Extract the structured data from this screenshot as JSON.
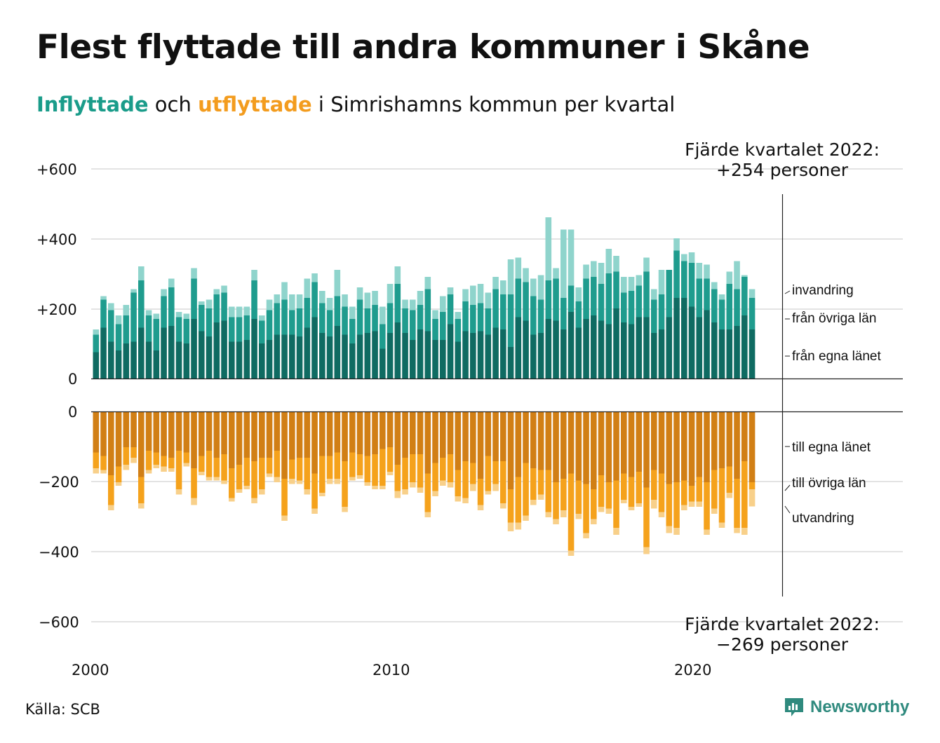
{
  "title": "Flest flyttade till andra kommuner i Skåne",
  "subtitle": {
    "in_word": "Inflyttade",
    "mid1": " och ",
    "out_word": "utflyttade",
    "mid2": " i Simrishamns kommun per kvartal"
  },
  "source": "Källa: SCB",
  "brand": "Newsworthy",
  "colors": {
    "in_own": "#0f6b62",
    "in_other": "#1f9c8e",
    "in_immig": "#8fd4cc",
    "out_own": "#d17f15",
    "out_other": "#f5a21c",
    "out_emig": "#f8d08a",
    "in_text": "#1a9c8a",
    "out_text": "#f39c1e",
    "brand": "#2f8a7e"
  },
  "chart_data": {
    "type": "bar",
    "stacked": true,
    "x_start": 2000,
    "frequency": "quarterly",
    "x_ticks": [
      "2000",
      "2010",
      "2020"
    ],
    "y_ticks_top": [
      "+600",
      "+400",
      "+200",
      "0"
    ],
    "y_ticks_bottom": [
      "0",
      "−200",
      "−400",
      "−600"
    ],
    "ylim_top": [
      0,
      600
    ],
    "ylim_bottom": [
      -600,
      0
    ],
    "grid": true,
    "annotation_top": {
      "line1": "Fjärde kvartalet 2022:",
      "line2": "+254 personer"
    },
    "annotation_bottom": {
      "line1": "Fjärde kvartalet 2022:",
      "line2": "−269 personer"
    },
    "labels_in": [
      "invandring",
      "från övriga län",
      "från egna länet"
    ],
    "labels_out": [
      "till egna länet",
      "till övriga län",
      "utvandring"
    ],
    "in_series": [
      {
        "name": "från egna länet",
        "values": [
          75,
          145,
          105,
          80,
          100,
          105,
          145,
          105,
          80,
          145,
          150,
          105,
          100,
          170,
          135,
          120,
          160,
          165,
          105,
          105,
          110,
          170,
          100,
          110,
          125,
          125,
          125,
          120,
          145,
          175,
          130,
          120,
          150,
          125,
          100,
          125,
          130,
          135,
          85,
          130,
          160,
          130,
          110,
          140,
          135,
          110,
          110,
          155,
          105,
          135,
          130,
          135,
          125,
          145,
          140,
          90,
          175,
          165,
          125,
          130,
          170,
          165,
          140,
          190,
          145,
          170,
          180,
          165,
          155,
          200,
          160,
          155,
          175,
          175,
          130,
          140,
          175,
          230,
          230,
          205,
          175,
          195,
          160,
          140,
          140,
          150,
          180,
          140
        ]
      },
      {
        "name": "från övriga län",
        "values": [
          50,
          80,
          90,
          75,
          80,
          140,
          135,
          75,
          90,
          90,
          110,
          70,
          70,
          115,
          75,
          80,
          80,
          80,
          70,
          70,
          70,
          110,
          65,
          85,
          90,
          100,
          70,
          80,
          85,
          100,
          85,
          75,
          85,
          80,
          70,
          100,
          70,
          75,
          70,
          85,
          110,
          70,
          85,
          70,
          120,
          60,
          80,
          85,
          65,
          85,
          80,
          80,
          75,
          110,
          100,
          150,
          110,
          110,
          110,
          95,
          110,
          120,
          90,
          75,
          75,
          115,
          110,
          105,
          145,
          105,
          85,
          95,
          90,
          130,
          95,
          100,
          135,
          135,
          105,
          125,
          110,
          90,
          95,
          85,
          130,
          105,
          110,
          90
        ]
      },
      {
        "name": "invandring",
        "values": [
          15,
          10,
          20,
          25,
          30,
          10,
          40,
          15,
          15,
          20,
          25,
          15,
          15,
          30,
          10,
          25,
          15,
          20,
          30,
          30,
          25,
          30,
          15,
          30,
          25,
          50,
          45,
          40,
          55,
          25,
          35,
          35,
          75,
          35,
          35,
          35,
          45,
          40,
          50,
          55,
          50,
          25,
          30,
          40,
          35,
          25,
          45,
          20,
          20,
          35,
          55,
          55,
          45,
          35,
          40,
          100,
          60,
          40,
          50,
          70,
          180,
          30,
          195,
          160,
          40,
          40,
          45,
          60,
          70,
          45,
          45,
          40,
          30,
          40,
          30,
          70,
          0,
          35,
          20,
          30,
          45,
          40,
          20,
          15,
          35,
          80,
          5,
          25
        ]
      }
    ],
    "out_series": [
      {
        "name": "till egna länet",
        "values": [
          115,
          125,
          180,
          155,
          100,
          100,
          185,
          110,
          115,
          125,
          130,
          110,
          115,
          160,
          125,
          110,
          130,
          120,
          160,
          150,
          130,
          140,
          130,
          130,
          110,
          190,
          135,
          130,
          130,
          175,
          125,
          125,
          115,
          140,
          115,
          120,
          125,
          120,
          105,
          100,
          150,
          130,
          120,
          120,
          175,
          145,
          130,
          120,
          165,
          140,
          145,
          190,
          125,
          140,
          140,
          220,
          185,
          145,
          160,
          165,
          165,
          200,
          190,
          175,
          195,
          205,
          220,
          180,
          200,
          195,
          175,
          185,
          170,
          215,
          165,
          175,
          205,
          200,
          195,
          210,
          185,
          200,
          165,
          160,
          155,
          190,
          140,
          200
        ]
      },
      {
        "name": "till övriga län",
        "values": [
          45,
          40,
          85,
          45,
          50,
          30,
          75,
          55,
          35,
          30,
          30,
          110,
          30,
          85,
          45,
          75,
          55,
          75,
          85,
          70,
          80,
          105,
          90,
          45,
          75,
          105,
          55,
          65,
          90,
          100,
          105,
          65,
          75,
          130,
          70,
          60,
          75,
          90,
          105,
          70,
          75,
          90,
          80,
          95,
          110,
          80,
          65,
          80,
          75,
          105,
          60,
          75,
          100,
          65,
          120,
          95,
          130,
          150,
          90,
          70,
          120,
          105,
          90,
          220,
          95,
          140,
          85,
          90,
          75,
          135,
          75,
          85,
          90,
          170,
          85,
          110,
          120,
          130,
          70,
          45,
          70,
          135,
          110,
          155,
          75,
          140,
          190,
          20
        ]
      },
      {
        "name": "utvandring",
        "values": [
          15,
          10,
          15,
          10,
          15,
          15,
          15,
          10,
          10,
          15,
          10,
          15,
          10,
          20,
          10,
          10,
          10,
          10,
          10,
          10,
          10,
          15,
          15,
          10,
          15,
          15,
          15,
          10,
          15,
          15,
          10,
          15,
          15,
          15,
          10,
          10,
          10,
          10,
          10,
          10,
          20,
          15,
          15,
          15,
          15,
          15,
          15,
          15,
          15,
          15,
          20,
          15,
          10,
          20,
          15,
          25,
          20,
          15,
          15,
          15,
          15,
          15,
          20,
          15,
          15,
          15,
          15,
          15,
          15,
          20,
          10,
          10,
          10,
          20,
          25,
          15,
          20,
          20,
          15,
          15,
          15,
          15,
          15,
          15,
          15,
          15,
          20,
          49
        ]
      }
    ]
  }
}
